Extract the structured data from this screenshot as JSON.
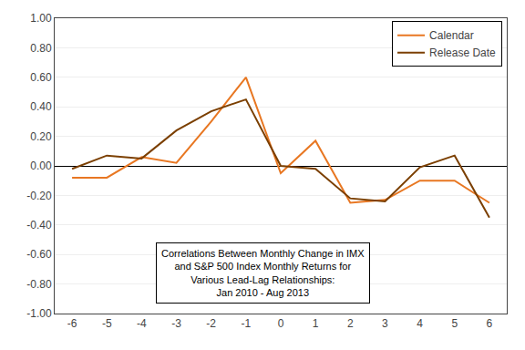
{
  "chart_data": {
    "type": "line",
    "x": [
      -6,
      -5,
      -4,
      -3,
      -2,
      -1,
      0,
      1,
      2,
      3,
      4,
      5,
      6
    ],
    "series": [
      {
        "name": "Calendar",
        "color": "#E87722",
        "values": [
          -0.08,
          -0.08,
          0.06,
          0.02,
          0.3,
          0.6,
          -0.05,
          0.17,
          -0.25,
          -0.23,
          -0.1,
          -0.1,
          -0.25
        ]
      },
      {
        "name": "Release Date",
        "color": "#7B3F00",
        "values": [
          -0.02,
          0.07,
          0.05,
          0.24,
          0.37,
          0.45,
          0.0,
          -0.02,
          -0.22,
          -0.24,
          -0.01,
          0.07,
          -0.35
        ]
      }
    ],
    "xlim": [
      -6.5,
      6.5
    ],
    "ylim": [
      -1.0,
      1.0
    ],
    "xticks": [
      -6,
      -5,
      -4,
      -3,
      -2,
      -1,
      0,
      1,
      2,
      3,
      4,
      5,
      6
    ],
    "yticks": [
      {
        "value": -1.0,
        "label": "-1.00"
      },
      {
        "value": -0.8,
        "label": "-0.80"
      },
      {
        "value": -0.6,
        "label": "-0.60"
      },
      {
        "value": -0.4,
        "label": "-0.40"
      },
      {
        "value": -0.2,
        "label": "-0.20"
      },
      {
        "value": 0.0,
        "label": "0.00"
      },
      {
        "value": 0.2,
        "label": "0.20"
      },
      {
        "value": 0.4,
        "label": "0.40"
      },
      {
        "value": 0.6,
        "label": "0.60"
      },
      {
        "value": 0.8,
        "label": "0.80"
      },
      {
        "value": 1.0,
        "label": "1.00"
      }
    ],
    "grid": "y",
    "legend": "upper right",
    "annotation": [
      "Correlations Between Monthly Change in IMX",
      "and S&P 500 Index Monthly Returns for",
      "Various Lead-Lag Relationships:",
      "Jan 2010 - Aug 2013"
    ]
  }
}
